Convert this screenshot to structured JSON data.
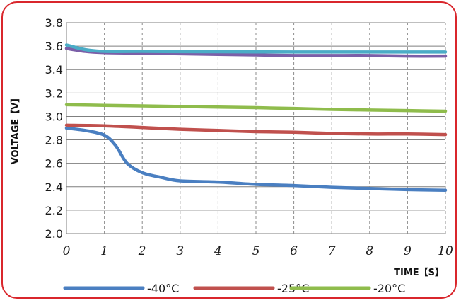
{
  "chart_data": {
    "type": "line",
    "xlabel": "TIME【S】",
    "ylabel": "VOLTAGE【V】",
    "xlim": [
      0,
      10
    ],
    "ylim": [
      2.0,
      3.8
    ],
    "x_ticks": [
      "0",
      "1",
      "2",
      "3",
      "4",
      "5",
      "6",
      "7",
      "8",
      "9",
      "10"
    ],
    "y_ticks": [
      "2.0",
      "2.2",
      "2.4",
      "2.6",
      "2.8",
      "3.0",
      "3.2",
      "3.4",
      "3.6",
      "3.8"
    ],
    "grid": {
      "x": "dashed",
      "y": "solid"
    },
    "legend_position": "bottom",
    "series": [
      {
        "name": "-40°C",
        "color": "#4a7fc1",
        "points": [
          [
            0,
            2.9
          ],
          [
            0.5,
            2.88
          ],
          [
            1,
            2.84
          ],
          [
            1.3,
            2.75
          ],
          [
            1.6,
            2.6
          ],
          [
            2,
            2.52
          ],
          [
            2.5,
            2.48
          ],
          [
            3,
            2.45
          ],
          [
            4,
            2.44
          ],
          [
            5,
            2.42
          ],
          [
            6,
            2.41
          ],
          [
            7,
            2.395
          ],
          [
            8,
            2.385
          ],
          [
            9,
            2.375
          ],
          [
            10,
            2.37
          ]
        ]
      },
      {
        "name": "-25°C",
        "color": "#c0504d",
        "points": [
          [
            0,
            2.925
          ],
          [
            1,
            2.92
          ],
          [
            2,
            2.905
          ],
          [
            3,
            2.89
          ],
          [
            4,
            2.88
          ],
          [
            5,
            2.87
          ],
          [
            6,
            2.865
          ],
          [
            7,
            2.855
          ],
          [
            8,
            2.85
          ],
          [
            9,
            2.85
          ],
          [
            10,
            2.845
          ]
        ]
      },
      {
        "name": "-20°C",
        "color": "#8fbc4c",
        "points": [
          [
            0,
            3.1
          ],
          [
            1,
            3.095
          ],
          [
            2,
            3.09
          ],
          [
            3,
            3.085
          ],
          [
            4,
            3.08
          ],
          [
            5,
            3.075
          ],
          [
            6,
            3.068
          ],
          [
            7,
            3.06
          ],
          [
            8,
            3.055
          ],
          [
            9,
            3.05
          ],
          [
            10,
            3.045
          ]
        ]
      },
      {
        "color": "#4bacc6",
        "points": [
          [
            0,
            3.61
          ],
          [
            0.5,
            3.57
          ],
          [
            1,
            3.555
          ],
          [
            2,
            3.555
          ],
          [
            3,
            3.553
          ],
          [
            4,
            3.552
          ],
          [
            5,
            3.551
          ],
          [
            6,
            3.55
          ],
          [
            7,
            3.55
          ],
          [
            8,
            3.55
          ],
          [
            9,
            3.55
          ],
          [
            10,
            3.55
          ]
        ]
      },
      {
        "color": "#7b5fa8",
        "points": [
          [
            0,
            3.58
          ],
          [
            0.5,
            3.555
          ],
          [
            1,
            3.545
          ],
          [
            2,
            3.54
          ],
          [
            3,
            3.535
          ],
          [
            4,
            3.53
          ],
          [
            5,
            3.525
          ],
          [
            6,
            3.52
          ],
          [
            7,
            3.52
          ],
          [
            8,
            3.52
          ],
          [
            9,
            3.515
          ],
          [
            10,
            3.515
          ]
        ]
      }
    ]
  },
  "legend": [
    {
      "label": "-40°C",
      "color": "#4a7fc1"
    },
    {
      "label": "-25°C",
      "color": "#c0504d"
    },
    {
      "label": "-20°C",
      "color": "#8fbc4c"
    }
  ]
}
